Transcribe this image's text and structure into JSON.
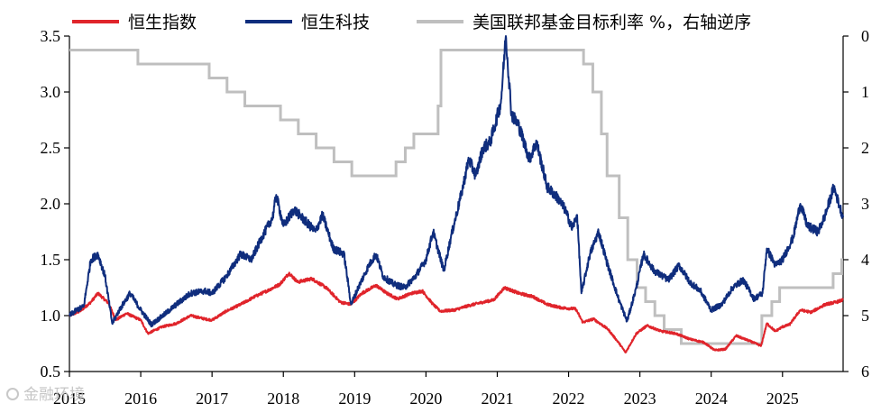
{
  "chart_data": {
    "type": "line",
    "title": "",
    "xlabel": "",
    "ylabel": "",
    "x_range": [
      2015.0,
      2025.85
    ],
    "ylim_left": [
      0.5,
      3.5
    ],
    "ylim_right": [
      0,
      6
    ],
    "right_axis_inverted": true,
    "yticks_left": [
      "0.5",
      "1.0",
      "1.5",
      "2.0",
      "2.5",
      "3.0",
      "3.5"
    ],
    "yticks_right": [
      "0",
      "1",
      "2",
      "3",
      "4",
      "5",
      "6"
    ],
    "xticks": [
      "2015",
      "2016",
      "2017",
      "2018",
      "2019",
      "2020",
      "2021",
      "2022",
      "2023",
      "2024",
      "2025"
    ],
    "grid": false,
    "legend_position": "top",
    "series": [
      {
        "name": "恒生指数",
        "axis": "left",
        "color": "#e0242b",
        "points": [
          [
            2015.0,
            1.0
          ],
          [
            2015.15,
            1.04
          ],
          [
            2015.3,
            1.12
          ],
          [
            2015.4,
            1.2
          ],
          [
            2015.55,
            1.11
          ],
          [
            2015.65,
            0.96
          ],
          [
            2015.8,
            1.02
          ],
          [
            2016.0,
            0.96
          ],
          [
            2016.1,
            0.84
          ],
          [
            2016.3,
            0.9
          ],
          [
            2016.5,
            0.93
          ],
          [
            2016.7,
            1.0
          ],
          [
            2016.9,
            0.97
          ],
          [
            2017.0,
            0.96
          ],
          [
            2017.2,
            1.04
          ],
          [
            2017.4,
            1.1
          ],
          [
            2017.6,
            1.17
          ],
          [
            2017.8,
            1.23
          ],
          [
            2017.95,
            1.28
          ],
          [
            2018.08,
            1.38
          ],
          [
            2018.2,
            1.3
          ],
          [
            2018.4,
            1.33
          ],
          [
            2018.6,
            1.25
          ],
          [
            2018.8,
            1.12
          ],
          [
            2018.95,
            1.1
          ],
          [
            2019.1,
            1.2
          ],
          [
            2019.3,
            1.27
          ],
          [
            2019.45,
            1.2
          ],
          [
            2019.6,
            1.15
          ],
          [
            2019.8,
            1.2
          ],
          [
            2019.95,
            1.22
          ],
          [
            2020.1,
            1.1
          ],
          [
            2020.2,
            1.04
          ],
          [
            2020.4,
            1.05
          ],
          [
            2020.6,
            1.09
          ],
          [
            2020.8,
            1.12
          ],
          [
            2020.95,
            1.14
          ],
          [
            2021.1,
            1.25
          ],
          [
            2021.3,
            1.2
          ],
          [
            2021.5,
            1.17
          ],
          [
            2021.7,
            1.1
          ],
          [
            2021.9,
            1.07
          ],
          [
            2022.1,
            1.06
          ],
          [
            2022.2,
            0.94
          ],
          [
            2022.35,
            0.97
          ],
          [
            2022.55,
            0.88
          ],
          [
            2022.7,
            0.76
          ],
          [
            2022.8,
            0.67
          ],
          [
            2022.95,
            0.84
          ],
          [
            2023.1,
            0.91
          ],
          [
            2023.3,
            0.86
          ],
          [
            2023.5,
            0.84
          ],
          [
            2023.7,
            0.79
          ],
          [
            2023.9,
            0.76
          ],
          [
            2024.05,
            0.69
          ],
          [
            2024.2,
            0.7
          ],
          [
            2024.35,
            0.82
          ],
          [
            2024.55,
            0.77
          ],
          [
            2024.7,
            0.73
          ],
          [
            2024.78,
            0.93
          ],
          [
            2024.9,
            0.86
          ],
          [
            2025.0,
            0.9
          ],
          [
            2025.1,
            0.92
          ],
          [
            2025.25,
            1.05
          ],
          [
            2025.4,
            1.03
          ],
          [
            2025.6,
            1.1
          ],
          [
            2025.75,
            1.12
          ],
          [
            2025.85,
            1.14
          ]
        ]
      },
      {
        "name": "恒生科技",
        "axis": "left",
        "color": "#0f2d7d",
        "points": [
          [
            2015.0,
            1.0
          ],
          [
            2015.1,
            1.05
          ],
          [
            2015.2,
            1.08
          ],
          [
            2015.3,
            1.5
          ],
          [
            2015.4,
            1.55
          ],
          [
            2015.5,
            1.35
          ],
          [
            2015.6,
            0.93
          ],
          [
            2015.7,
            1.05
          ],
          [
            2015.85,
            1.2
          ],
          [
            2016.0,
            1.05
          ],
          [
            2016.15,
            0.92
          ],
          [
            2016.35,
            1.02
          ],
          [
            2016.5,
            1.1
          ],
          [
            2016.7,
            1.2
          ],
          [
            2016.9,
            1.22
          ],
          [
            2017.0,
            1.2
          ],
          [
            2017.2,
            1.35
          ],
          [
            2017.4,
            1.55
          ],
          [
            2017.55,
            1.5
          ],
          [
            2017.7,
            1.7
          ],
          [
            2017.85,
            1.88
          ],
          [
            2017.9,
            2.08
          ],
          [
            2018.0,
            1.8
          ],
          [
            2018.15,
            1.95
          ],
          [
            2018.3,
            1.85
          ],
          [
            2018.45,
            1.75
          ],
          [
            2018.55,
            1.9
          ],
          [
            2018.7,
            1.6
          ],
          [
            2018.85,
            1.55
          ],
          [
            2018.95,
            1.1
          ],
          [
            2019.05,
            1.25
          ],
          [
            2019.2,
            1.45
          ],
          [
            2019.3,
            1.55
          ],
          [
            2019.4,
            1.35
          ],
          [
            2019.55,
            1.28
          ],
          [
            2019.7,
            1.25
          ],
          [
            2019.85,
            1.35
          ],
          [
            2020.0,
            1.5
          ],
          [
            2020.1,
            1.75
          ],
          [
            2020.2,
            1.52
          ],
          [
            2020.25,
            1.4
          ],
          [
            2020.35,
            1.7
          ],
          [
            2020.5,
            2.1
          ],
          [
            2020.6,
            2.4
          ],
          [
            2020.7,
            2.25
          ],
          [
            2020.8,
            2.5
          ],
          [
            2020.9,
            2.55
          ],
          [
            2021.05,
            2.9
          ],
          [
            2021.12,
            3.5
          ],
          [
            2021.2,
            2.8
          ],
          [
            2021.3,
            2.7
          ],
          [
            2021.45,
            2.4
          ],
          [
            2021.55,
            2.55
          ],
          [
            2021.7,
            2.15
          ],
          [
            2021.85,
            2.05
          ],
          [
            2021.95,
            1.95
          ],
          [
            2022.05,
            1.78
          ],
          [
            2022.12,
            1.9
          ],
          [
            2022.18,
            1.2
          ],
          [
            2022.3,
            1.55
          ],
          [
            2022.42,
            1.75
          ],
          [
            2022.55,
            1.45
          ],
          [
            2022.7,
            1.15
          ],
          [
            2022.82,
            0.95
          ],
          [
            2022.95,
            1.25
          ],
          [
            2023.05,
            1.55
          ],
          [
            2023.2,
            1.4
          ],
          [
            2023.4,
            1.32
          ],
          [
            2023.55,
            1.45
          ],
          [
            2023.7,
            1.3
          ],
          [
            2023.85,
            1.22
          ],
          [
            2024.0,
            1.05
          ],
          [
            2024.15,
            1.1
          ],
          [
            2024.3,
            1.25
          ],
          [
            2024.45,
            1.32
          ],
          [
            2024.6,
            1.15
          ],
          [
            2024.72,
            1.2
          ],
          [
            2024.78,
            1.6
          ],
          [
            2024.9,
            1.45
          ],
          [
            2025.0,
            1.5
          ],
          [
            2025.15,
            1.7
          ],
          [
            2025.25,
            2.0
          ],
          [
            2025.35,
            1.8
          ],
          [
            2025.5,
            1.75
          ],
          [
            2025.6,
            1.9
          ],
          [
            2025.72,
            2.15
          ],
          [
            2025.8,
            1.98
          ],
          [
            2025.85,
            1.88
          ]
        ]
      },
      {
        "name": "美国联邦基金目标利率 %，右轴逆序",
        "axis": "right",
        "color": "#bfbfbf",
        "step": true,
        "points": [
          [
            2015.0,
            0.25
          ],
          [
            2015.96,
            0.25
          ],
          [
            2015.96,
            0.5
          ],
          [
            2016.96,
            0.5
          ],
          [
            2016.96,
            0.75
          ],
          [
            2017.21,
            0.75
          ],
          [
            2017.21,
            1.0
          ],
          [
            2017.46,
            1.0
          ],
          [
            2017.46,
            1.25
          ],
          [
            2017.96,
            1.25
          ],
          [
            2017.96,
            1.5
          ],
          [
            2018.21,
            1.5
          ],
          [
            2018.21,
            1.75
          ],
          [
            2018.46,
            1.75
          ],
          [
            2018.46,
            2.0
          ],
          [
            2018.71,
            2.0
          ],
          [
            2018.71,
            2.25
          ],
          [
            2018.96,
            2.25
          ],
          [
            2018.96,
            2.5
          ],
          [
            2019.58,
            2.5
          ],
          [
            2019.58,
            2.25
          ],
          [
            2019.71,
            2.25
          ],
          [
            2019.71,
            2.0
          ],
          [
            2019.83,
            2.0
          ],
          [
            2019.83,
            1.75
          ],
          [
            2020.17,
            1.75
          ],
          [
            2020.17,
            1.25
          ],
          [
            2020.21,
            1.25
          ],
          [
            2020.21,
            0.25
          ],
          [
            2022.21,
            0.25
          ],
          [
            2022.21,
            0.5
          ],
          [
            2022.34,
            0.5
          ],
          [
            2022.34,
            1.0
          ],
          [
            2022.46,
            1.0
          ],
          [
            2022.46,
            1.75
          ],
          [
            2022.54,
            1.75
          ],
          [
            2022.54,
            2.5
          ],
          [
            2022.71,
            2.5
          ],
          [
            2022.71,
            3.25
          ],
          [
            2022.83,
            3.25
          ],
          [
            2022.83,
            4.0
          ],
          [
            2022.96,
            4.0
          ],
          [
            2022.96,
            4.5
          ],
          [
            2023.08,
            4.5
          ],
          [
            2023.08,
            4.75
          ],
          [
            2023.21,
            4.75
          ],
          [
            2023.21,
            5.0
          ],
          [
            2023.34,
            5.0
          ],
          [
            2023.34,
            5.25
          ],
          [
            2023.58,
            5.25
          ],
          [
            2023.58,
            5.5
          ],
          [
            2024.71,
            5.5
          ],
          [
            2024.71,
            5.0
          ],
          [
            2024.85,
            5.0
          ],
          [
            2024.85,
            4.75
          ],
          [
            2024.96,
            4.75
          ],
          [
            2024.96,
            4.5
          ],
          [
            2025.71,
            4.5
          ],
          [
            2025.71,
            4.25
          ],
          [
            2025.83,
            4.25
          ],
          [
            2025.83,
            4.0
          ],
          [
            2025.85,
            4.0
          ]
        ]
      }
    ]
  },
  "watermark": "金融环境"
}
